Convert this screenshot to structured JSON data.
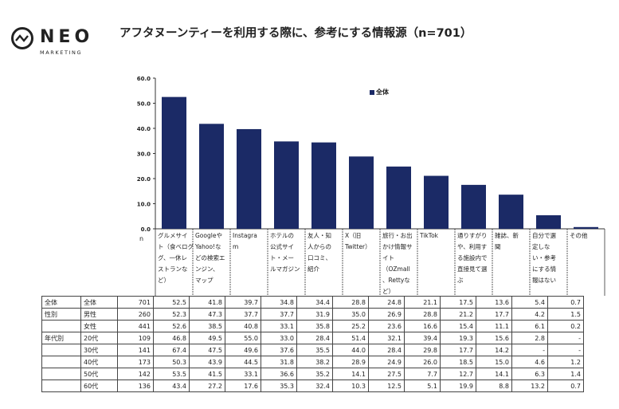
{
  "brand": {
    "name": "NEO",
    "tagline": "MARKETING"
  },
  "chart_data": {
    "type": "bar",
    "title": "アフタヌーンティーを利用する際に、参考にする情報源（n=701）",
    "legend": [
      "全体"
    ],
    "legend_position": "top-right",
    "ylim": [
      0,
      60
    ],
    "yticks": [
      "60.0",
      "50.0",
      "40.0",
      "30.0",
      "20.0",
      "10.0",
      "0.0"
    ],
    "n_label": "n",
    "categories": [
      [
        "グルメサイ",
        "ト（食べログ",
        "グ、一休レ",
        "ストランな",
        "ど）"
      ],
      [
        "Googleや",
        "Yahoo!な",
        "どの検索エ",
        "ンジン、",
        "マップ"
      ],
      [
        "Instagra",
        "m"
      ],
      [
        "ホテルの",
        "公式サイ",
        "ト・メー",
        "ルマガジン"
      ],
      [
        "友人・知",
        "人からの",
        "口コミ、",
        "紹介"
      ],
      [
        "X（旧",
        "Twitter）"
      ],
      [
        "旅行・お出",
        "かけ情報サ",
        "イト",
        "（OZmall",
        "、Rettyな",
        "ど）"
      ],
      [
        "TikTok"
      ],
      [
        "通りすがり",
        "や、利用す",
        "る施設内で",
        "直接見て選",
        "ぶ"
      ],
      [
        "雑誌、新",
        "聞"
      ],
      [
        "自分で選",
        "定しな",
        "い・参考",
        "にする情",
        "報はない"
      ],
      [
        "その他"
      ]
    ],
    "series": [
      {
        "name": "全体",
        "color": "#1b2a66",
        "values": [
          52.5,
          41.8,
          39.7,
          34.8,
          34.4,
          28.8,
          24.8,
          21.1,
          17.5,
          13.6,
          5.4,
          0.7
        ]
      }
    ]
  },
  "table": {
    "rows": [
      {
        "group": "全体",
        "sub": "全体",
        "n": "701",
        "values": [
          "52.5",
          "41.8",
          "39.7",
          "34.8",
          "34.4",
          "28.8",
          "24.8",
          "21.1",
          "17.5",
          "13.6",
          "5.4",
          "0.7"
        ]
      },
      {
        "group": "性別",
        "sub": "男性",
        "n": "260",
        "values": [
          "52.3",
          "47.3",
          "37.7",
          "37.7",
          "31.9",
          "35.0",
          "26.9",
          "28.8",
          "21.2",
          "17.7",
          "4.2",
          "1.5"
        ]
      },
      {
        "group": "",
        "sub": "女性",
        "n": "441",
        "values": [
          "52.6",
          "38.5",
          "40.8",
          "33.1",
          "35.8",
          "25.2",
          "23.6",
          "16.6",
          "15.4",
          "11.1",
          "6.1",
          "0.2"
        ]
      },
      {
        "group": "年代別",
        "sub": "20代",
        "n": "109",
        "values": [
          "46.8",
          "49.5",
          "55.0",
          "33.0",
          "28.4",
          "51.4",
          "32.1",
          "39.4",
          "19.3",
          "15.6",
          "2.8",
          "-"
        ]
      },
      {
        "group": "",
        "sub": "30代",
        "n": "141",
        "values": [
          "67.4",
          "47.5",
          "49.6",
          "37.6",
          "35.5",
          "44.0",
          "28.4",
          "29.8",
          "17.7",
          "14.2",
          "-",
          "-"
        ]
      },
      {
        "group": "",
        "sub": "40代",
        "n": "173",
        "values": [
          "50.3",
          "43.9",
          "44.5",
          "31.8",
          "38.2",
          "28.9",
          "24.9",
          "26.0",
          "18.5",
          "15.0",
          "4.6",
          "1.2"
        ]
      },
      {
        "group": "",
        "sub": "50代",
        "n": "142",
        "values": [
          "53.5",
          "41.5",
          "33.1",
          "36.6",
          "35.2",
          "14.1",
          "27.5",
          "7.7",
          "12.7",
          "14.1",
          "6.3",
          "1.4"
        ]
      },
      {
        "group": "",
        "sub": "60代",
        "n": "136",
        "values": [
          "43.4",
          "27.2",
          "17.6",
          "35.3",
          "32.4",
          "10.3",
          "12.5",
          "5.1",
          "19.9",
          "8.8",
          "13.2",
          "0.7"
        ]
      }
    ]
  }
}
